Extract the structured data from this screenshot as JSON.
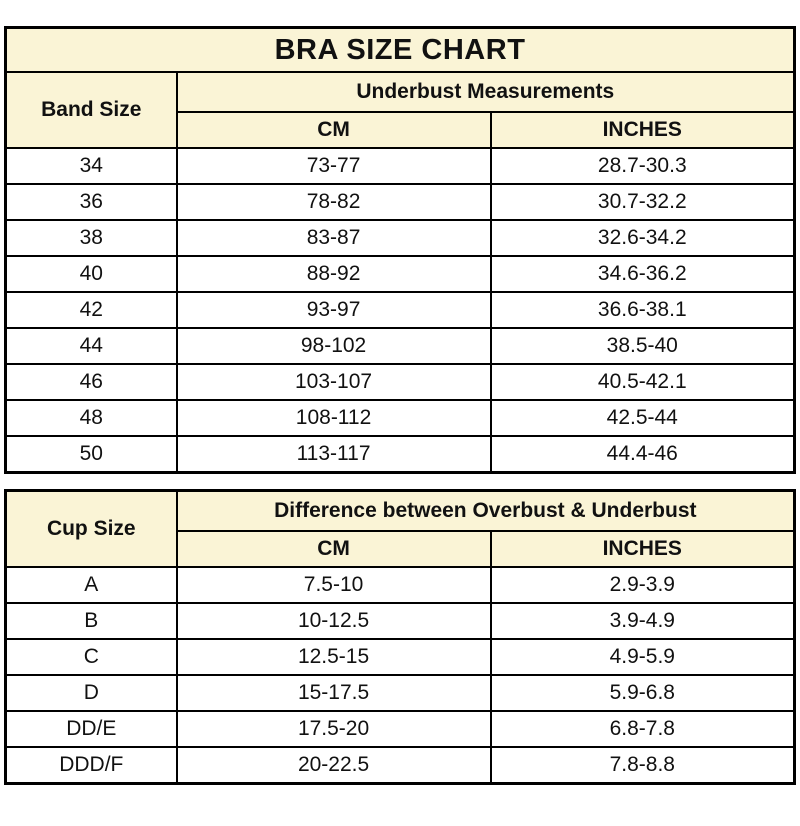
{
  "colors": {
    "header_bg": "#FAF4D6",
    "row_bg": "#FFFFFF",
    "border": "#000000",
    "text": "#111111"
  },
  "chart_data": [
    {
      "type": "table",
      "title": "BRA SIZE CHART",
      "row_header": "Band Size",
      "group_header": "Underbust Measurements",
      "columns": [
        "CM",
        "INCHES"
      ],
      "rows": [
        {
          "size": "34",
          "cm": "73-77",
          "inches": "28.7-30.3"
        },
        {
          "size": "36",
          "cm": "78-82",
          "inches": "30.7-32.2"
        },
        {
          "size": "38",
          "cm": "83-87",
          "inches": "32.6-34.2"
        },
        {
          "size": "40",
          "cm": "88-92",
          "inches": "34.6-36.2"
        },
        {
          "size": "42",
          "cm": "93-97",
          "inches": "36.6-38.1"
        },
        {
          "size": "44",
          "cm": "98-102",
          "inches": "38.5-40"
        },
        {
          "size": "46",
          "cm": "103-107",
          "inches": "40.5-42.1"
        },
        {
          "size": "48",
          "cm": "108-112",
          "inches": "42.5-44"
        },
        {
          "size": "50",
          "cm": "113-117",
          "inches": "44.4-46"
        }
      ]
    },
    {
      "type": "table",
      "title": "",
      "row_header": "Cup Size",
      "group_header": "Difference between Overbust & Underbust",
      "columns": [
        "CM",
        "INCHES"
      ],
      "rows": [
        {
          "size": "A",
          "cm": "7.5-10",
          "inches": "2.9-3.9"
        },
        {
          "size": "B",
          "cm": "10-12.5",
          "inches": "3.9-4.9"
        },
        {
          "size": "C",
          "cm": "12.5-15",
          "inches": "4.9-5.9"
        },
        {
          "size": "D",
          "cm": "15-17.5",
          "inches": "5.9-6.8"
        },
        {
          "size": "DD/E",
          "cm": "17.5-20",
          "inches": "6.8-7.8"
        },
        {
          "size": "DDD/F",
          "cm": "20-22.5",
          "inches": "7.8-8.8"
        }
      ]
    }
  ]
}
